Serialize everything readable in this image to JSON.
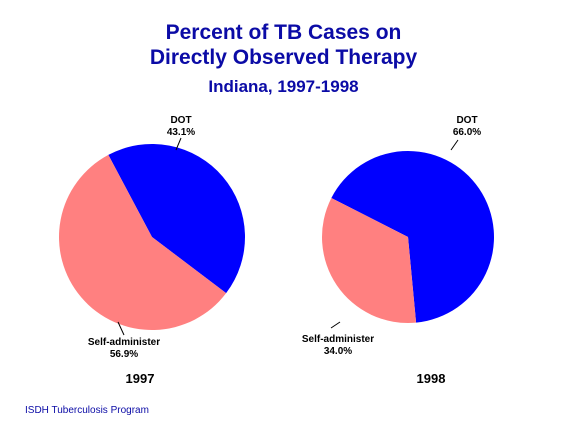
{
  "title": {
    "line1": "Percent of TB Cases on",
    "line2": "Directly Observed Therapy",
    "subtitle": "Indiana, 1997-1998"
  },
  "colors": {
    "dot": "#0000ff",
    "self": "#ff8080",
    "title": "#0b0ba6"
  },
  "footer": "ISDH Tuberculosis Program",
  "chart_data": [
    {
      "type": "pie",
      "label": "1997",
      "slices": [
        {
          "name": "DOT",
          "value": 43.1,
          "value_label": "43.1%"
        },
        {
          "name": "Self-administer",
          "value": 56.9,
          "value_label": "56.9%"
        }
      ]
    },
    {
      "type": "pie",
      "label": "1998",
      "slices": [
        {
          "name": "DOT",
          "value": 66.0,
          "value_label": "66.0%"
        },
        {
          "name": "Self-administer",
          "value": 34.0,
          "value_label": "34.0%"
        }
      ]
    }
  ]
}
